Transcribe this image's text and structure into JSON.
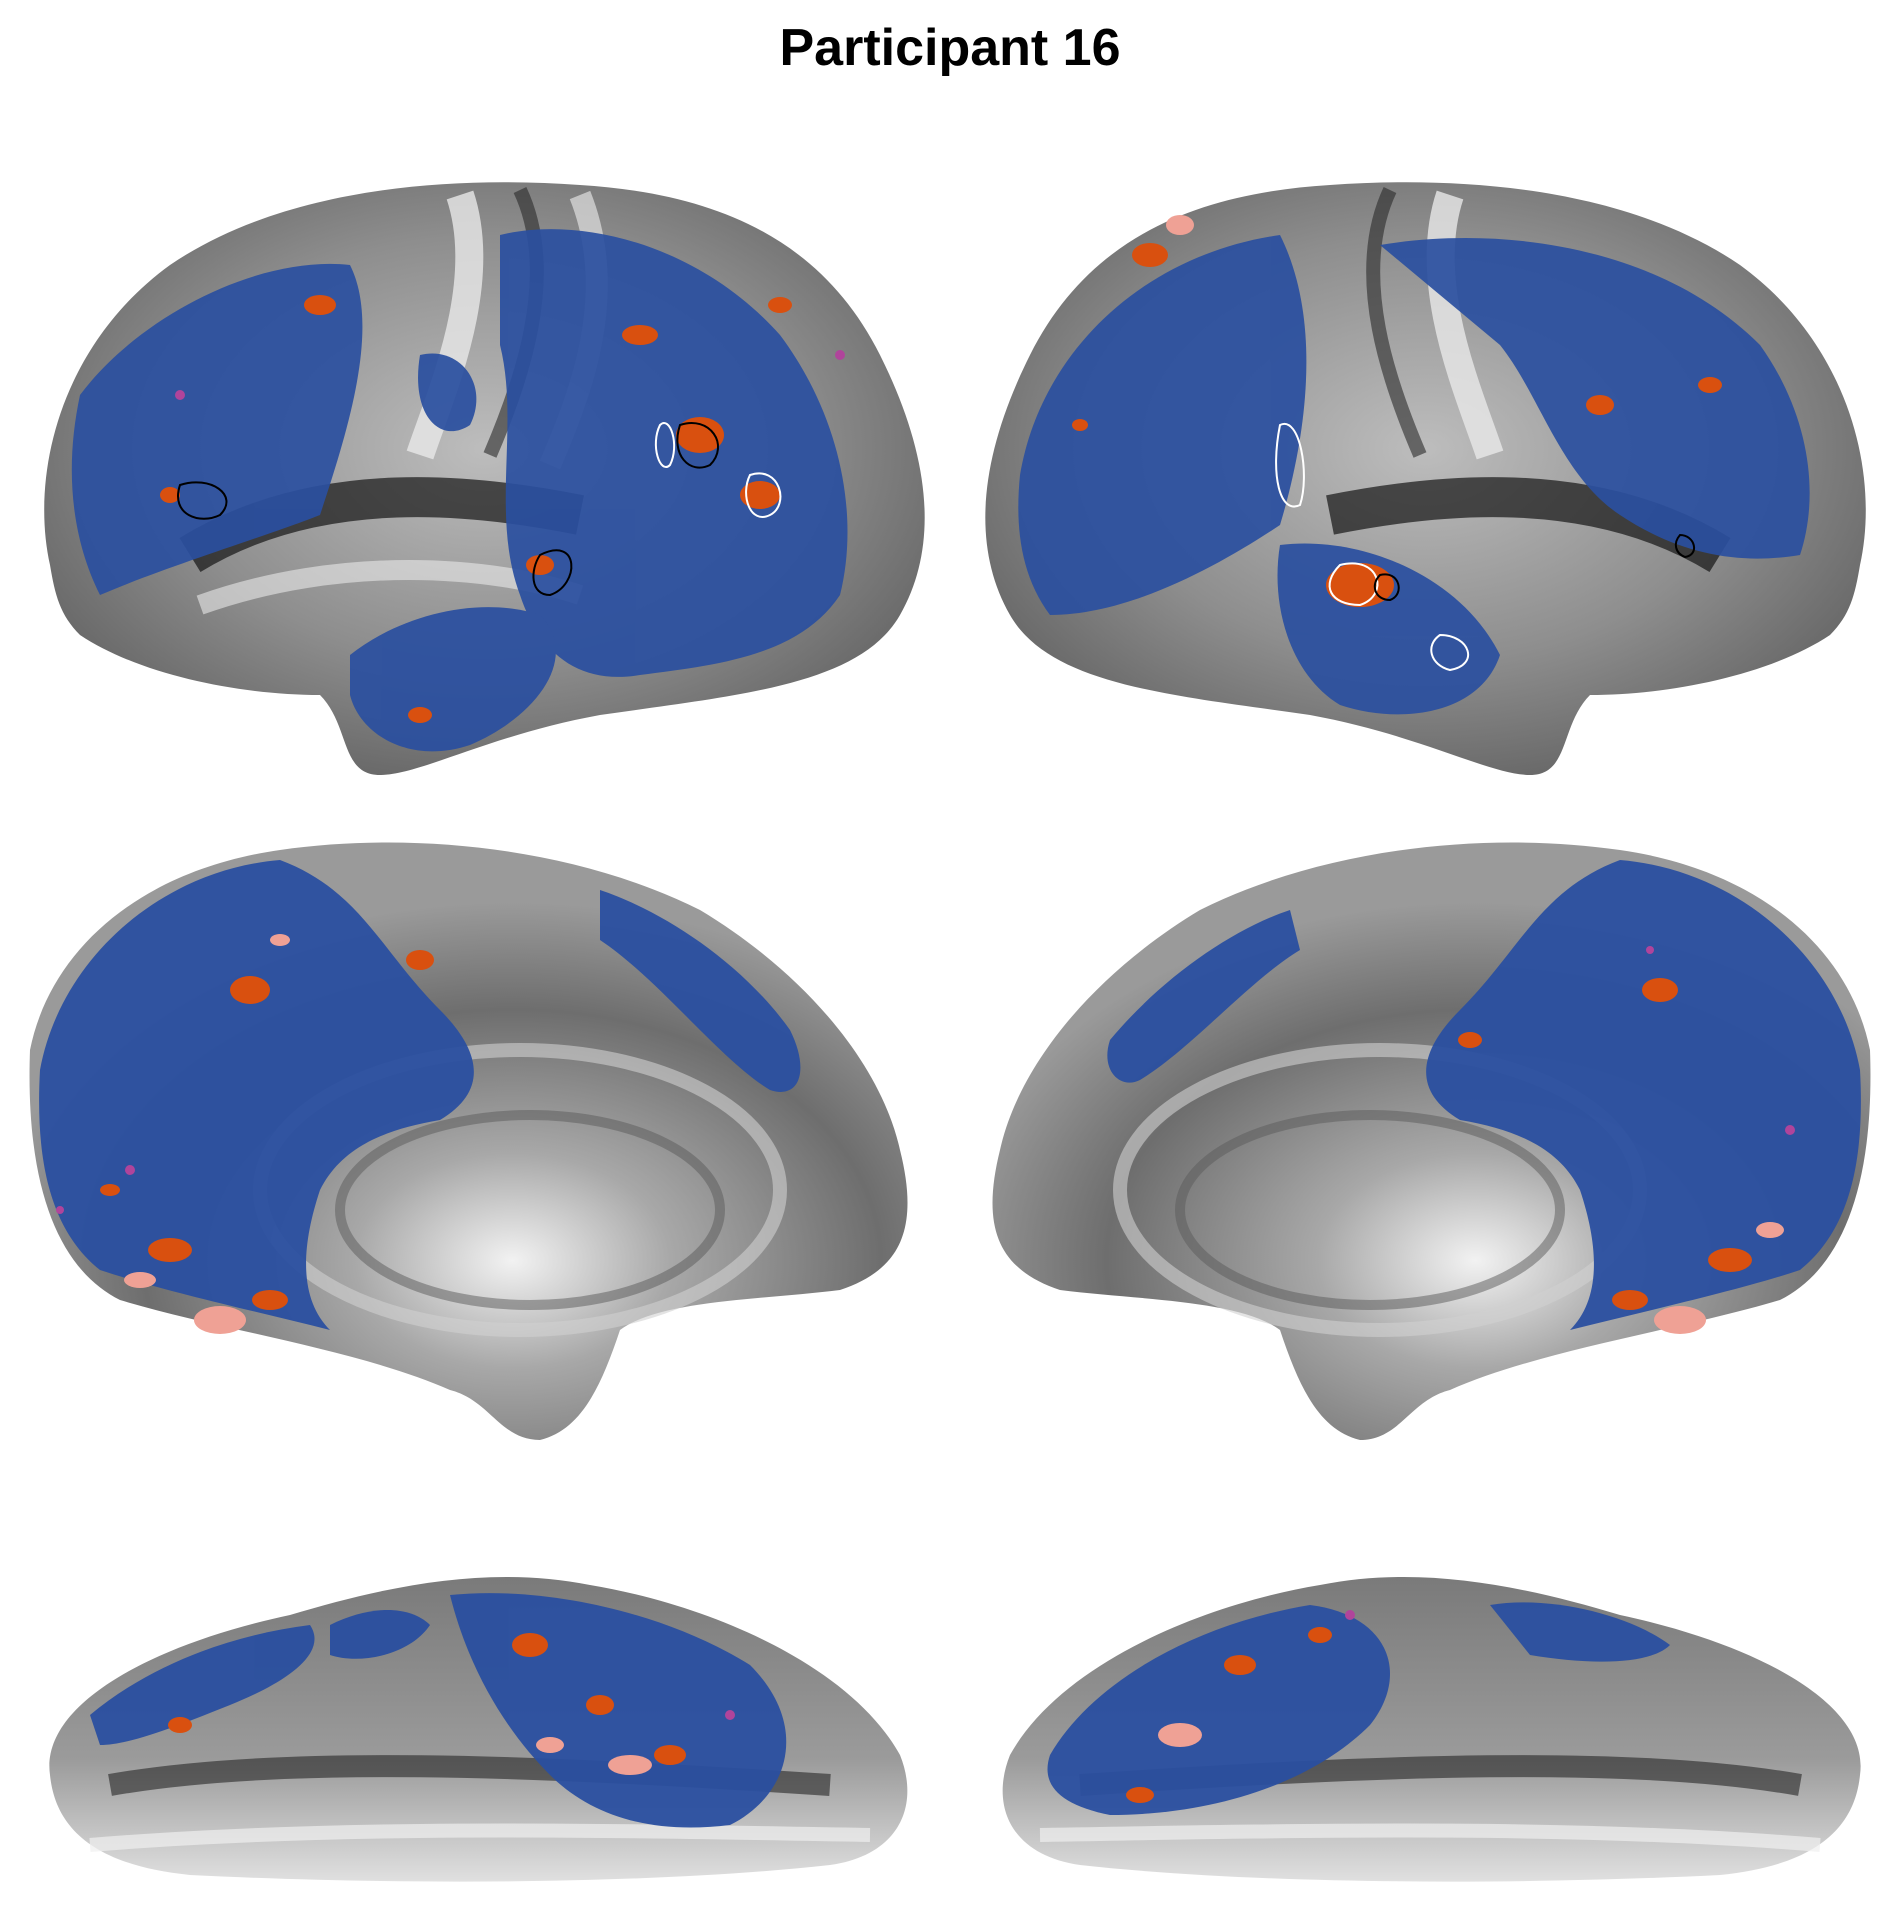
{
  "title": "Participant 16",
  "colors": {
    "background": "#ffffff",
    "surface_gray": "#8e8e8e",
    "surface_light": "#e6e6e6",
    "surface_dark": "#1a1a1a",
    "activation_blue": "#2a4fa0",
    "activation_orange": "#d9500f",
    "activation_pink": "#efa195",
    "activation_magenta": "#b0449b",
    "outline_black": "#000000",
    "outline_white": "#ffffff"
  },
  "views": [
    {
      "name": "left-hemisphere-lateral"
    },
    {
      "name": "right-hemisphere-lateral"
    },
    {
      "name": "left-hemisphere-medial"
    },
    {
      "name": "right-hemisphere-medial"
    },
    {
      "name": "left-hemisphere-ventral"
    },
    {
      "name": "right-hemisphere-ventral"
    }
  ]
}
